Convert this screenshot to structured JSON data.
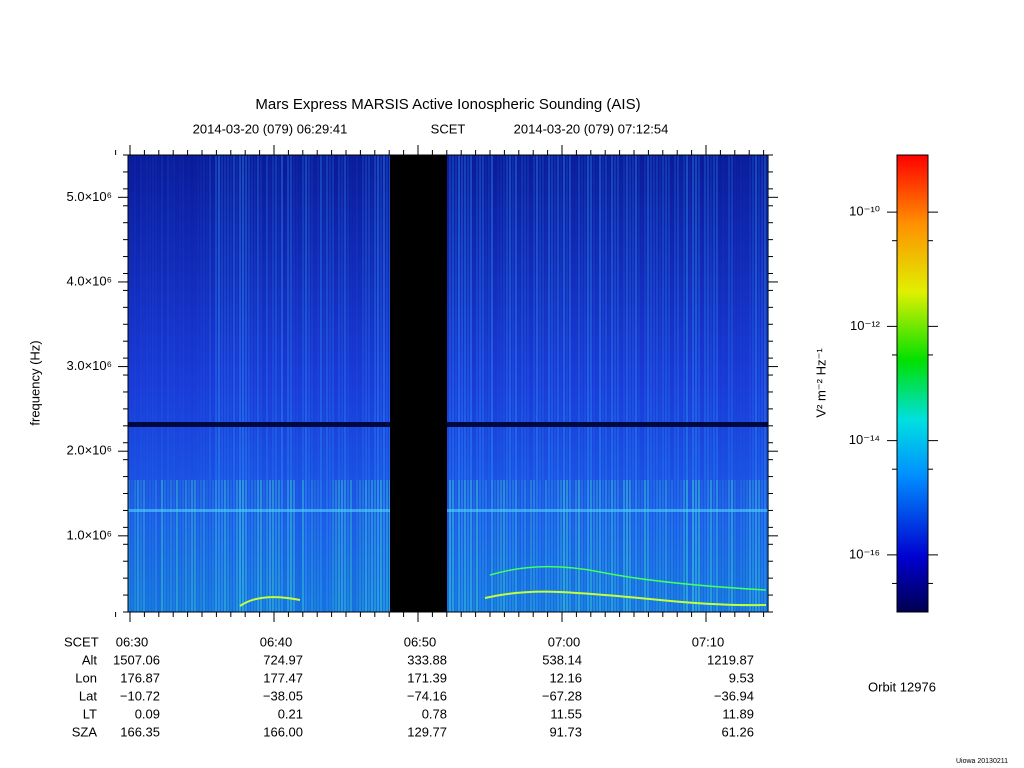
{
  "chart_data": {
    "type": "spectrogram",
    "title": "Mars Express MARSIS Active Ionospheric Sounding (AIS)",
    "start_time": "2014-03-20 (079) 06:29:41",
    "time_system": "SCET",
    "end_time": "2014-03-20 (079) 07:12:54",
    "y_label": "frequency (Hz)",
    "ylim": [
      100000,
      5500000
    ],
    "yticks": [
      {
        "value": 1000000,
        "label": "1.0×10⁶"
      },
      {
        "value": 2000000,
        "label": "2.0×10⁶"
      },
      {
        "value": 3000000,
        "label": "3.0×10⁶"
      },
      {
        "value": 4000000,
        "label": "4.0×10⁶"
      },
      {
        "value": 5000000,
        "label": "5.0×10⁶"
      }
    ],
    "x_row_label": "SCET",
    "xticks": [
      "06:30",
      "06:40",
      "06:50",
      "07:00",
      "07:10"
    ],
    "ephemeris": [
      {
        "name": "Alt",
        "values": [
          "1507.06",
          "724.97",
          "333.88",
          "538.14",
          "1219.87"
        ]
      },
      {
        "name": "Lon",
        "values": [
          "176.87",
          "177.47",
          "171.39",
          "12.16",
          "9.53"
        ]
      },
      {
        "name": "Lat",
        "values": [
          "−10.72",
          "−38.05",
          "−74.16",
          "−67.28",
          "−36.94"
        ]
      },
      {
        "name": "LT",
        "values": [
          "0.09",
          "0.21",
          "0.78",
          "11.55",
          "11.89"
        ]
      },
      {
        "name": "SZA",
        "values": [
          "166.35",
          "166.00",
          "129.77",
          "91.73",
          "61.26"
        ]
      }
    ],
    "colorbar": {
      "label": "V² m⁻² Hz⁻¹",
      "log": true,
      "zlim": [
        1e-17,
        1e-09
      ],
      "ticks": [
        {
          "value": 1e-10,
          "label": "10⁻¹⁰"
        },
        {
          "value": 1e-12,
          "label": "10⁻¹²"
        },
        {
          "value": 1e-14,
          "label": "10⁻¹⁴"
        },
        {
          "value": 1e-16,
          "label": "10⁻¹⁶"
        }
      ]
    },
    "orbit": "Orbit 12976",
    "footer": "Uiowa 20130211"
  }
}
